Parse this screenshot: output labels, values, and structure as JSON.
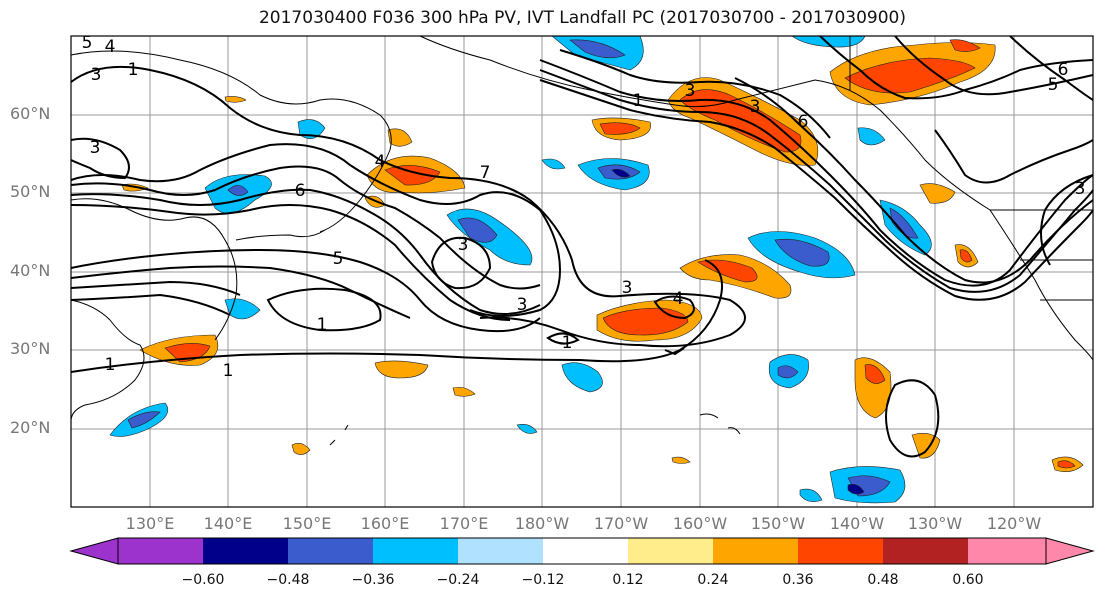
{
  "title": "2017030400 F036 300 hPa PV, IVT Landfall PC (2017030700 - 2017030900)",
  "lat_labels": [
    "60°N",
    "50°N",
    "40°N",
    "30°N",
    "20°N"
  ],
  "lon_labels": [
    "130°E",
    "140°E",
    "150°E",
    "160°E",
    "170°E",
    "180°W",
    "170°W",
    "160°W",
    "150°W",
    "140°W",
    "130°W",
    "120°W"
  ],
  "contour_labels": [
    "5",
    "4",
    "1",
    "3",
    "1",
    "3",
    "6",
    "4",
    "5",
    "1",
    "3",
    "3",
    "4",
    "1",
    "3",
    "1",
    "3",
    "3",
    "6",
    "6",
    "5",
    "3",
    "7",
    "1"
  ],
  "colorbar": {
    "ticks": [
      "−0.60",
      "−0.48",
      "−0.36",
      "−0.24",
      "−0.12",
      "0.12",
      "0.24",
      "0.36",
      "0.48",
      "0.60"
    ],
    "colors": [
      "#9b33cc",
      "#00008b",
      "#3a5ccc",
      "#00bfff",
      "#b0e2ff",
      "#ffffff",
      "#ffec8b",
      "#ffa500",
      "#ff4500",
      "#b22222",
      "#ff88aa"
    ]
  }
}
